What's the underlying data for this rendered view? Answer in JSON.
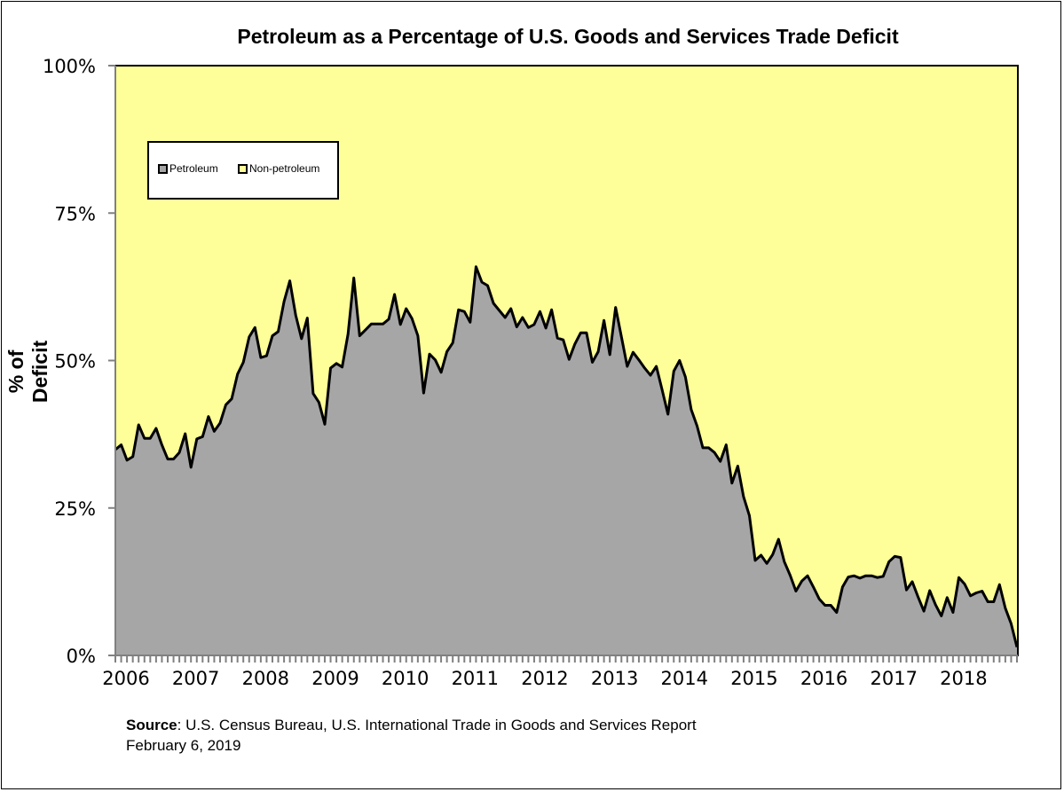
{
  "chart_data": {
    "type": "area",
    "title": "Petroleum as a Percentage of U.S. Goods and Services Trade Deficit",
    "xlabel": "",
    "ylabel": "% of Deficit",
    "ylim": [
      0,
      100
    ],
    "yticks": [
      "0%",
      "25%",
      "50%",
      "75%",
      "100%"
    ],
    "ytick_values": [
      0,
      25,
      50,
      75,
      100
    ],
    "xticks": [
      "2006",
      "2007",
      "2008",
      "2009",
      "2010",
      "2011",
      "2012",
      "2013",
      "2014",
      "2015",
      "2016",
      "2017",
      "2018"
    ],
    "x_start": "2006-01",
    "x_end": "2018-12",
    "frequency": "monthly",
    "grid": false,
    "legend_position": "top-left",
    "series": [
      {
        "name": "Petroleum",
        "color": "#a6a6a6",
        "values": [
          34.9,
          35.7,
          33.1,
          33.7,
          39.1,
          36.8,
          36.8,
          38.5,
          35.7,
          33.3,
          33.3,
          34.4,
          37.6,
          31.9,
          36.7,
          37.1,
          40.5,
          38.0,
          39.4,
          42.5,
          43.5,
          47.7,
          49.7,
          54.0,
          55.6,
          50.5,
          50.8,
          54.2,
          54.9,
          60.0,
          63.5,
          57.7,
          53.7,
          57.2,
          44.4,
          42.9,
          39.2,
          48.7,
          49.5,
          48.9,
          54.5,
          64.0,
          54.2,
          55.2,
          56.2,
          56.2,
          56.2,
          57.0,
          61.2,
          56.1,
          58.8,
          57.1,
          54.2,
          44.5,
          51.1,
          50.1,
          48.0,
          51.5,
          53.0,
          58.6,
          58.3,
          56.5,
          65.9,
          63.3,
          62.7,
          59.7,
          58.5,
          57.3,
          58.8,
          55.7,
          57.3,
          55.6,
          56.1,
          58.3,
          55.5,
          58.6,
          53.8,
          53.5,
          50.2,
          52.8,
          54.7,
          54.7,
          49.7,
          51.5,
          56.8,
          51.0,
          59.0,
          54.0,
          49.0,
          51.4,
          50.1,
          48.7,
          47.5,
          49.0,
          45.0,
          40.9,
          48.2,
          50.0,
          47.2,
          41.7,
          38.9,
          35.2,
          35.2,
          34.4,
          32.9,
          35.7,
          29.2,
          32.1,
          26.9,
          23.7,
          16.1,
          17.0,
          15.6,
          17.1,
          19.7,
          15.9,
          13.6,
          10.9,
          12.6,
          13.5,
          11.6,
          9.6,
          8.5,
          8.5,
          7.3,
          11.6,
          13.3,
          13.5,
          13.1,
          13.5,
          13.5,
          13.2,
          13.4,
          15.9,
          16.8,
          16.6,
          11.1,
          12.5,
          9.9,
          7.5,
          11.0,
          8.6,
          6.7,
          9.8,
          7.3,
          13.2,
          12.1,
          10.1,
          10.6,
          10.9,
          9.1,
          9.1,
          12.0,
          8.0,
          5.4,
          1.4
        ]
      },
      {
        "name": "Non-petroleum",
        "color": "#ffff99",
        "values_note": "remainder to 100%"
      }
    ]
  },
  "source": {
    "label": "Source",
    "text": ": U.S. Census Bureau, U.S. International Trade in Goods and Services Report",
    "date": "February 6, 2019"
  }
}
